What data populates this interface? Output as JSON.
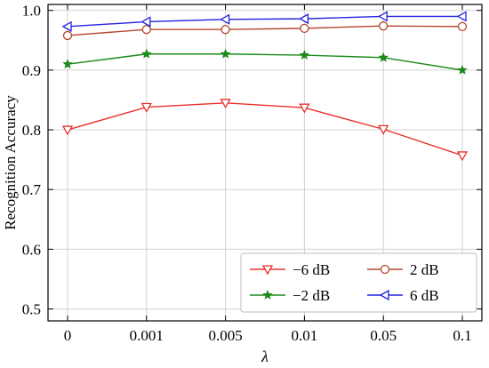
{
  "chart_data": {
    "type": "line",
    "categories": [
      "0",
      "0.001",
      "0.005",
      "0.01",
      "0.05",
      "0.1"
    ],
    "xlabel": "λ",
    "ylabel": "Recognition Accuracy",
    "ylim": [
      0.48,
      1.01
    ],
    "yticks": [
      0.5,
      0.6,
      0.7,
      0.8,
      0.9,
      1.0
    ],
    "ytick_labels": [
      "0.5",
      "0.6",
      "0.7",
      "0.8",
      "0.9",
      "1.0"
    ],
    "grid": true,
    "legend": {
      "position": "bottom-right",
      "columns": 2
    },
    "series": [
      {
        "name": "−6 dB",
        "color": "#e8302a",
        "marker": "triangle-down",
        "values": [
          0.8,
          0.838,
          0.845,
          0.837,
          0.801,
          0.757
        ]
      },
      {
        "name": "−2 dB",
        "color": "#1a8a1a",
        "marker": "star",
        "values": [
          0.91,
          0.927,
          0.927,
          0.925,
          0.921,
          0.9
        ]
      },
      {
        "name": "2 dB",
        "color": "#b5472e",
        "marker": "circle",
        "values": [
          0.958,
          0.968,
          0.968,
          0.97,
          0.974,
          0.973
        ]
      },
      {
        "name": "6 dB",
        "color": "#2222e0",
        "marker": "triangle-left",
        "values": [
          0.973,
          0.981,
          0.985,
          0.986,
          0.99,
          0.99
        ]
      }
    ],
    "legend_order": [
      0,
      2,
      1,
      3
    ]
  }
}
